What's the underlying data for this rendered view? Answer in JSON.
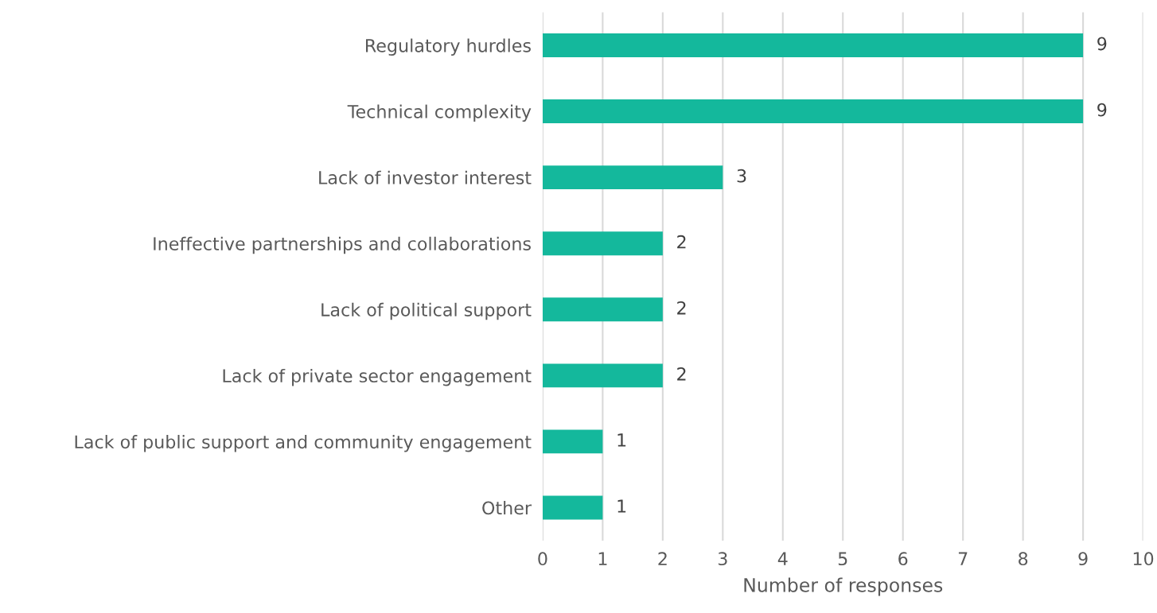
{
  "chart_data": {
    "type": "bar",
    "orientation": "horizontal",
    "xlabel": "Number of responses",
    "categories": [
      "Regulatory hurdles",
      "Technical complexity",
      "Lack of investor interest",
      "Ineffective partnerships and collaborations",
      "Lack of political support",
      "Lack of private sector engagement",
      "Lack of public support and community engagement",
      "Other"
    ],
    "values": [
      9,
      9,
      3,
      2,
      2,
      2,
      1,
      1
    ],
    "color": "#14b89c",
    "xlim": [
      0,
      10
    ],
    "xticks": [
      0,
      1,
      2,
      3,
      4,
      5,
      6,
      7,
      8,
      9,
      10
    ],
    "grid": "x",
    "data_labels": true
  }
}
